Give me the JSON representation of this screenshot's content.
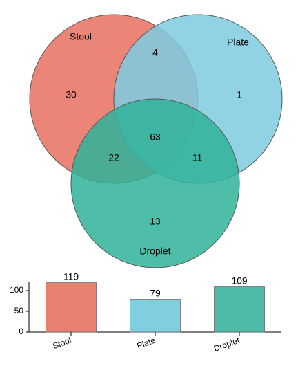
{
  "chart_data": [
    {
      "type": "venn",
      "sets": [
        {
          "name": "Stool",
          "color": "#e8705f"
        },
        {
          "name": "Plate",
          "color": "#7ecbe0"
        },
        {
          "name": "Droplet",
          "color": "#2fb39a"
        }
      ],
      "regions": [
        {
          "sets": [
            "Stool"
          ],
          "value": 30
        },
        {
          "sets": [
            "Plate"
          ],
          "value": 1
        },
        {
          "sets": [
            "Droplet"
          ],
          "value": 13
        },
        {
          "sets": [
            "Stool",
            "Plate"
          ],
          "value": 4
        },
        {
          "sets": [
            "Stool",
            "Droplet"
          ],
          "value": 22
        },
        {
          "sets": [
            "Plate",
            "Droplet"
          ],
          "value": 11
        },
        {
          "sets": [
            "Stool",
            "Plate",
            "Droplet"
          ],
          "value": 63
        }
      ]
    },
    {
      "type": "bar",
      "categories": [
        "Stool",
        "Plate",
        "Droplet"
      ],
      "values": [
        119,
        79,
        109
      ],
      "colors": [
        "#e8806f",
        "#80cfe1",
        "#4dbba6"
      ],
      "ylim": [
        0,
        120
      ],
      "yticks": [
        0,
        50,
        100
      ]
    }
  ]
}
